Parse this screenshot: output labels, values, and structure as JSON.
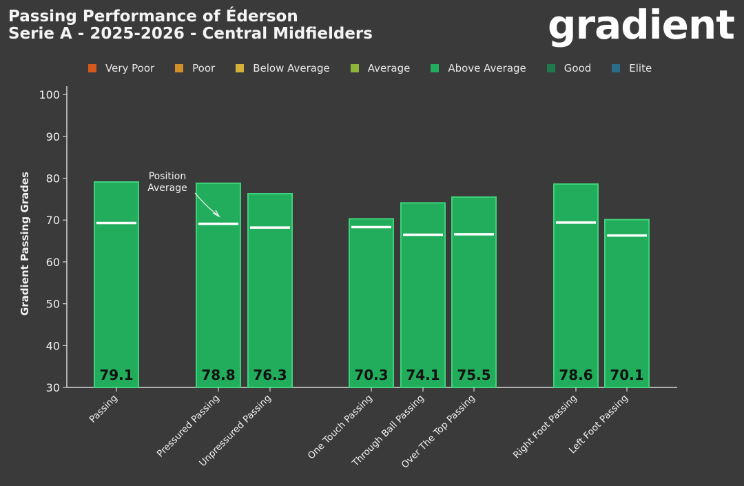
{
  "title_line1": "Passing Performance of Éderson",
  "title_line2": "Serie A - 2025-2026 - Central Midfielders",
  "logo_text": "gradient",
  "legend": [
    {
      "label": "Very Poor",
      "color": "#d35a1c"
    },
    {
      "label": "Poor",
      "color": "#d18f2a"
    },
    {
      "label": "Below Average",
      "color": "#d4b23a"
    },
    {
      "label": "Average",
      "color": "#8cb53a"
    },
    {
      "label": "Above Average",
      "color": "#22ad5c"
    },
    {
      "label": "Good",
      "color": "#1e7a4c"
    },
    {
      "label": "Elite",
      "color": "#2a6e8a"
    }
  ],
  "annotation": {
    "line1": "Position",
    "line2": "Average"
  },
  "chart_data": {
    "type": "bar",
    "ylabel": "Gradient Passing Grades",
    "ylim": [
      30,
      100
    ],
    "yticks": [
      30,
      40,
      50,
      60,
      70,
      80,
      90,
      100
    ],
    "bar_color": "#22ad5c",
    "bar_edge_color": "#3fd27a",
    "categories": [
      "Passing",
      "Pressured Passing",
      "Unpressured Passing",
      "One Touch Passing",
      "Through Ball Passing",
      "Over The Top Passing",
      "Right Foot Passing",
      "Left Foot Passing"
    ],
    "values": [
      79.1,
      78.8,
      76.3,
      70.3,
      74.1,
      75.5,
      78.6,
      70.1
    ],
    "value_labels": [
      "79.1",
      "78.8",
      "76.3",
      "70.3",
      "74.1",
      "75.5",
      "78.6",
      "70.1"
    ],
    "position_average": [
      69.3,
      69.1,
      68.2,
      68.3,
      66.5,
      66.6,
      69.4,
      66.3
    ]
  }
}
